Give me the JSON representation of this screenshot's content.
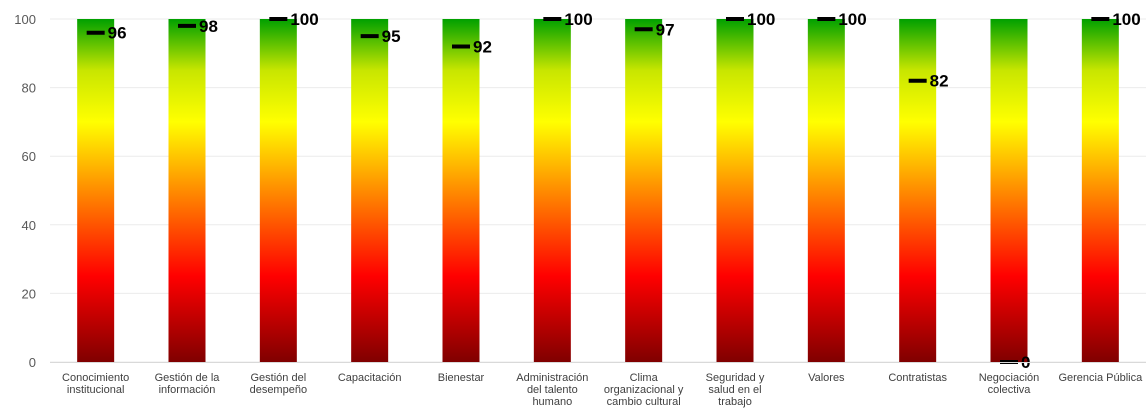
{
  "chart_data": {
    "type": "bar",
    "categories": [
      [
        "Conocimiento",
        "institucional"
      ],
      [
        "Gestión de la",
        "información"
      ],
      [
        "Gestión del",
        "desempeño"
      ],
      [
        "Capacitación"
      ],
      [
        "Bienestar"
      ],
      [
        "Administración",
        "del talento",
        "humano"
      ],
      [
        "Clima",
        "organizacional y",
        "cambio cultural"
      ],
      [
        "Seguridad y",
        "salud en el",
        "trabajo"
      ],
      [
        "Valores"
      ],
      [
        "Contratistas"
      ],
      [
        "Negociación",
        "colectiva"
      ],
      [
        "Gerencia Pública"
      ]
    ],
    "values": [
      96,
      98,
      100,
      95,
      92,
      100,
      97,
      100,
      100,
      82,
      0,
      100
    ],
    "bar_max": 100,
    "ylim": [
      0,
      100
    ],
    "yticks": [
      0,
      20,
      40,
      60,
      80,
      100
    ],
    "title": "",
    "xlabel": "",
    "ylabel": "",
    "grid": true,
    "legend": "none",
    "background_gradient": [
      "#800000",
      "#ff0000",
      "#ff8000",
      "#ffff00",
      "#c8e000",
      "#00a000"
    ],
    "marker_color": "#000000",
    "grid_color": "#ebebeb"
  }
}
